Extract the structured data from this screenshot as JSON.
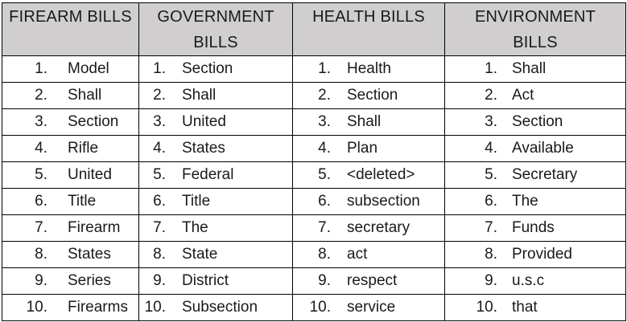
{
  "headers": [
    {
      "line1": "FIREARM BILLS",
      "line2": ""
    },
    {
      "line1": "GOVERNMENT",
      "line2": "BILLS"
    },
    {
      "line1": "HEALTH BILLS",
      "line2": ""
    },
    {
      "line1": "ENVIRONMENT",
      "line2": "BILLS"
    }
  ],
  "rows": [
    {
      "n": "1.",
      "firearm": "Model",
      "government": "Section",
      "health": "Health",
      "environment": "Shall"
    },
    {
      "n": "2.",
      "firearm": "Shall",
      "government": "Shall",
      "health": "Section",
      "environment": "Act"
    },
    {
      "n": "3.",
      "firearm": "Section",
      "government": "United",
      "health": "Shall",
      "environment": "Section"
    },
    {
      "n": "4.",
      "firearm": "Rifle",
      "government": "States",
      "health": "Plan",
      "environment": "Available"
    },
    {
      "n": "5.",
      "firearm": "United",
      "government": "Federal",
      "health": "<deleted>",
      "environment": "Secretary"
    },
    {
      "n": "6.",
      "firearm": "Title",
      "government": "Title",
      "health": "subsection",
      "environment": "The"
    },
    {
      "n": "7.",
      "firearm": "Firearm",
      "government": "The",
      "health": "secretary",
      "environment": "Funds"
    },
    {
      "n": "8.",
      "firearm": "States",
      "government": "State",
      "health": "act",
      "environment": "Provided"
    },
    {
      "n": "9.",
      "firearm": "Series",
      "government": "District",
      "health": "respect",
      "environment": "u.s.c"
    },
    {
      "n": "10.",
      "firearm": "Firearms",
      "government": "Subsection",
      "health": "service",
      "environment": "that"
    }
  ]
}
